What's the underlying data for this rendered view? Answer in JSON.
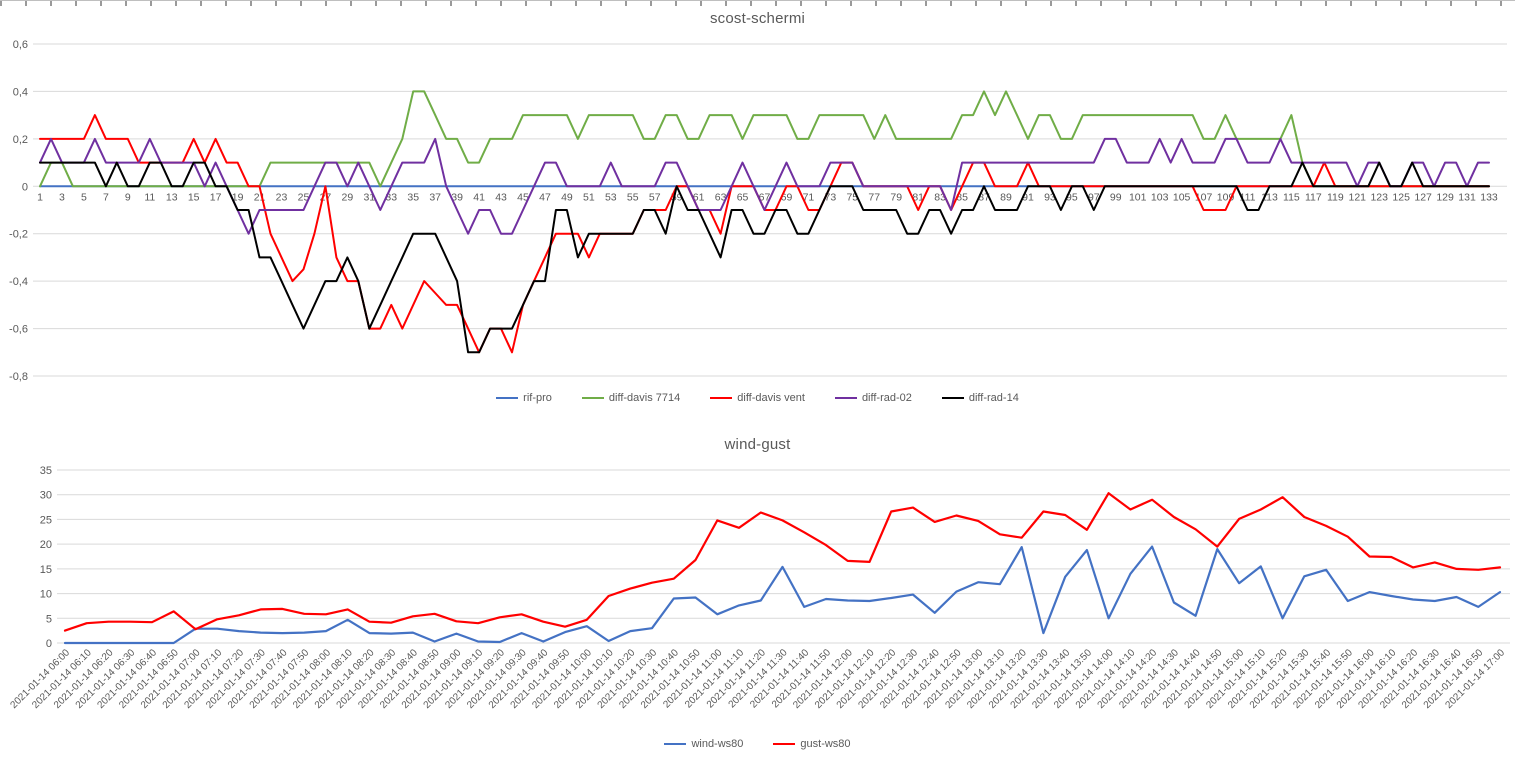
{
  "chart_data": [
    {
      "type": "line",
      "title": "scost-schermi",
      "xlabel": "",
      "ylabel": "",
      "ylim": [
        -0.8,
        0.6
      ],
      "grid": true,
      "legend_position": "bottom",
      "decimal_separator": ",",
      "y_ticks": [
        {
          "v": 0.6,
          "label": "0,6"
        },
        {
          "v": 0.4,
          "label": "0,4"
        },
        {
          "v": 0.2,
          "label": "0,2"
        },
        {
          "v": 0.0,
          "label": "0"
        },
        {
          "v": -0.2,
          "label": "-0,2"
        },
        {
          "v": -0.4,
          "label": "-0,4"
        },
        {
          "v": -0.6,
          "label": "-0,6"
        },
        {
          "v": -0.8,
          "label": "-0,8"
        }
      ],
      "x_labels": [
        "1",
        "3",
        "5",
        "7",
        "9",
        "11",
        "13",
        "15",
        "17",
        "19",
        "21",
        "23",
        "25",
        "27",
        "29",
        "31",
        "33",
        "35",
        "37",
        "39",
        "41",
        "43",
        "45",
        "47",
        "49",
        "51",
        "53",
        "55",
        "57",
        "59",
        "61",
        "63",
        "65",
        "67",
        "69",
        "71",
        "73",
        "75",
        "77",
        "79",
        "81",
        "83",
        "85",
        "87",
        "89",
        "91",
        "93",
        "95",
        "97",
        "99",
        "101",
        "103",
        "105",
        "107",
        "109",
        "111",
        "113",
        "115",
        "117",
        "119",
        "121",
        "123",
        "125",
        "127",
        "129",
        "131",
        "133"
      ],
      "series": [
        {
          "name": "rif-pro",
          "color": "#4472C4",
          "values": [
            0,
            0,
            0,
            0,
            0,
            0,
            0,
            0,
            0,
            0,
            0,
            0,
            0,
            0,
            0,
            0,
            0,
            0,
            0,
            0,
            0,
            0,
            0,
            0,
            0,
            0,
            0,
            0,
            0,
            0,
            0,
            0,
            0,
            0,
            0,
            0,
            0,
            0,
            0,
            0,
            0,
            0,
            0,
            0,
            0,
            0,
            0,
            0,
            0,
            0,
            0,
            0,
            0,
            0,
            0,
            0,
            0,
            0,
            0,
            0,
            0,
            0,
            0,
            0,
            0,
            0,
            0,
            0,
            0,
            0,
            0,
            0,
            0,
            0,
            0,
            0,
            0,
            0,
            0,
            0,
            0,
            0,
            0,
            0,
            0,
            0,
            0,
            0,
            0,
            0,
            0,
            0,
            0,
            0,
            0,
            0,
            0,
            0,
            0,
            0,
            0,
            0,
            0,
            0,
            0,
            0,
            0,
            0,
            0,
            0,
            0,
            0,
            0,
            0,
            0,
            0,
            0,
            0,
            0,
            0,
            0,
            0,
            0,
            0,
            0,
            0,
            0,
            0,
            0,
            0,
            0,
            0,
            0
          ]
        },
        {
          "name": "diff-davis 7714",
          "color": "#70AD47",
          "values": [
            0,
            0.1,
            0.1,
            0,
            0,
            0,
            0,
            0,
            0,
            0,
            0,
            0,
            0,
            0,
            0,
            0,
            0,
            0,
            0,
            0,
            0,
            0.1,
            0.1,
            0.1,
            0.1,
            0.1,
            0.1,
            0.1,
            0.1,
            0.1,
            0.1,
            0,
            0.1,
            0.2,
            0.4,
            0.4,
            0.3,
            0.2,
            0.2,
            0.1,
            0.1,
            0.2,
            0.2,
            0.2,
            0.3,
            0.3,
            0.3,
            0.3,
            0.3,
            0.2,
            0.3,
            0.3,
            0.3,
            0.3,
            0.3,
            0.2,
            0.2,
            0.3,
            0.3,
            0.2,
            0.2,
            0.3,
            0.3,
            0.3,
            0.2,
            0.3,
            0.3,
            0.3,
            0.3,
            0.2,
            0.2,
            0.3,
            0.3,
            0.3,
            0.3,
            0.3,
            0.2,
            0.3,
            0.2,
            0.2,
            0.2,
            0.2,
            0.2,
            0.2,
            0.3,
            0.3,
            0.4,
            0.3,
            0.4,
            0.3,
            0.2,
            0.3,
            0.3,
            0.2,
            0.2,
            0.3,
            0.3,
            0.3,
            0.3,
            0.3,
            0.3,
            0.3,
            0.3,
            0.3,
            0.3,
            0.3,
            0.2,
            0.2,
            0.3,
            0.2,
            0.2,
            0.2,
            0.2,
            0.2,
            0.3,
            0.1,
            0,
            0,
            0,
            0,
            0,
            0,
            0,
            0,
            0,
            0,
            0,
            0,
            0,
            0,
            0,
            0,
            0
          ]
        },
        {
          "name": "diff-davis vent",
          "color": "#FF0000",
          "values": [
            0.2,
            0.2,
            0.2,
            0.2,
            0.2,
            0.3,
            0.2,
            0.2,
            0.2,
            0.1,
            0.1,
            0.1,
            0.1,
            0.1,
            0.2,
            0.1,
            0.2,
            0.1,
            0.1,
            0,
            0,
            -0.2,
            -0.3,
            -0.4,
            -0.35,
            -0.2,
            0,
            -0.3,
            -0.4,
            -0.4,
            -0.6,
            -0.6,
            -0.5,
            -0.6,
            -0.5,
            -0.4,
            -0.45,
            -0.5,
            -0.5,
            -0.6,
            -0.7,
            -0.6,
            -0.6,
            -0.7,
            -0.5,
            -0.4,
            -0.3,
            -0.2,
            -0.2,
            -0.2,
            -0.3,
            -0.2,
            -0.2,
            -0.2,
            -0.2,
            -0.1,
            -0.1,
            -0.1,
            0,
            0,
            -0.1,
            -0.1,
            -0.2,
            0,
            0,
            0,
            -0.1,
            -0.1,
            0,
            0,
            -0.1,
            -0.1,
            0,
            0.1,
            0.1,
            0,
            0,
            0,
            0,
            0,
            -0.1,
            0,
            0,
            -0.1,
            0,
            0.1,
            0.1,
            0,
            0,
            0,
            0.1,
            0,
            0,
            0,
            0,
            0,
            0,
            0,
            0,
            0,
            0,
            0,
            0,
            0,
            0,
            0,
            -0.1,
            -0.1,
            -0.1,
            0,
            0,
            0,
            0,
            0,
            0,
            0,
            0,
            0.1,
            0,
            0,
            0,
            0,
            0,
            0,
            0,
            0,
            0,
            0,
            0,
            0,
            0,
            0,
            0
          ]
        },
        {
          "name": "diff-rad-02",
          "color": "#7030A0",
          "values": [
            0.1,
            0.2,
            0.1,
            0.1,
            0.1,
            0.2,
            0.1,
            0.1,
            0.1,
            0.1,
            0.2,
            0.1,
            0.1,
            0.1,
            0.1,
            0,
            0.1,
            0,
            -0.1,
            -0.2,
            -0.1,
            -0.1,
            -0.1,
            -0.1,
            -0.1,
            0,
            0.1,
            0.1,
            0,
            0.1,
            0,
            -0.1,
            0,
            0.1,
            0.1,
            0.1,
            0.2,
            0,
            -0.1,
            -0.2,
            -0.1,
            -0.1,
            -0.2,
            -0.2,
            -0.1,
            0,
            0.1,
            0.1,
            0,
            0,
            0,
            0,
            0.1,
            0,
            0,
            0,
            0,
            0.1,
            0.1,
            0,
            -0.1,
            -0.1,
            -0.1,
            0,
            0.1,
            0,
            -0.1,
            0,
            0.1,
            0,
            0,
            0,
            0.1,
            0.1,
            0.1,
            0,
            0,
            0,
            0,
            0,
            0,
            0,
            0,
            -0.1,
            0.1,
            0.1,
            0.1,
            0.1,
            0.1,
            0.1,
            0.1,
            0.1,
            0.1,
            0.1,
            0.1,
            0.1,
            0.1,
            0.2,
            0.2,
            0.1,
            0.1,
            0.1,
            0.2,
            0.1,
            0.2,
            0.1,
            0.1,
            0.1,
            0.2,
            0.2,
            0.1,
            0.1,
            0.1,
            0.2,
            0.1,
            0.1,
            0.1,
            0.1,
            0.1,
            0.1,
            0,
            0.1,
            0.1,
            0,
            0,
            0.1,
            0.1,
            0,
            0.1,
            0.1,
            0,
            0.1,
            0.1
          ]
        },
        {
          "name": "diff-rad-14",
          "color": "#000000",
          "values": [
            0.1,
            0.1,
            0.1,
            0.1,
            0.1,
            0.1,
            0,
            0.1,
            0,
            0,
            0.1,
            0.1,
            0,
            0,
            0.1,
            0.1,
            0,
            0,
            -0.1,
            -0.1,
            -0.3,
            -0.3,
            -0.4,
            -0.5,
            -0.6,
            -0.5,
            -0.4,
            -0.4,
            -0.3,
            -0.4,
            -0.6,
            -0.5,
            -0.4,
            -0.3,
            -0.2,
            -0.2,
            -0.2,
            -0.3,
            -0.4,
            -0.7,
            -0.7,
            -0.6,
            -0.6,
            -0.6,
            -0.5,
            -0.4,
            -0.4,
            -0.1,
            -0.1,
            -0.3,
            -0.2,
            -0.2,
            -0.2,
            -0.2,
            -0.2,
            -0.1,
            -0.1,
            -0.2,
            0,
            -0.1,
            -0.1,
            -0.2,
            -0.3,
            -0.1,
            -0.1,
            -0.2,
            -0.2,
            -0.1,
            -0.1,
            -0.2,
            -0.2,
            -0.1,
            0,
            0,
            0,
            -0.1,
            -0.1,
            -0.1,
            -0.1,
            -0.2,
            -0.2,
            -0.1,
            -0.1,
            -0.2,
            -0.1,
            -0.1,
            0,
            -0.1,
            -0.1,
            -0.1,
            0,
            0,
            0,
            -0.1,
            0,
            0,
            -0.1,
            0,
            0,
            0,
            0,
            0,
            0,
            0,
            0,
            0,
            0,
            0,
            0,
            0,
            -0.1,
            -0.1,
            0,
            0,
            0,
            0.1,
            0,
            0,
            0,
            0,
            0,
            0,
            0.1,
            0,
            0,
            0.1,
            0,
            0,
            0,
            0,
            0,
            0,
            0
          ]
        }
      ]
    },
    {
      "type": "line",
      "title": "wind-gust",
      "xlabel": "",
      "ylabel": "",
      "ylim": [
        0,
        35
      ],
      "grid": true,
      "legend_position": "bottom",
      "y_ticks": [
        {
          "v": 35,
          "label": "35"
        },
        {
          "v": 30,
          "label": "30"
        },
        {
          "v": 25,
          "label": "25"
        },
        {
          "v": 20,
          "label": "20"
        },
        {
          "v": 15,
          "label": "15"
        },
        {
          "v": 10,
          "label": "10"
        },
        {
          "v": 5,
          "label": "5"
        },
        {
          "v": 0,
          "label": "0"
        }
      ],
      "x_labels": [
        "2021-01-14 06:00",
        "2021-01-14 06:10",
        "2021-01-14 06:20",
        "2021-01-14 06:30",
        "2021-01-14 06:40",
        "2021-01-14 06:50",
        "2021-01-14 07:00",
        "2021-01-14 07:10",
        "2021-01-14 07:20",
        "2021-01-14 07:30",
        "2021-01-14 07:40",
        "2021-01-14 07:50",
        "2021-01-14 08:00",
        "2021-01-14 08:10",
        "2021-01-14 08:20",
        "2021-01-14 08:30",
        "2021-01-14 08:40",
        "2021-01-14 08:50",
        "2021-01-14 09:00",
        "2021-01-14 09:10",
        "2021-01-14 09:20",
        "2021-01-14 09:30",
        "2021-01-14 09:40",
        "2021-01-14 09:50",
        "2021-01-14 10:00",
        "2021-01-14 10:10",
        "2021-01-14 10:20",
        "2021-01-14 10:30",
        "2021-01-14 10:40",
        "2021-01-14 10:50",
        "2021-01-14 11:00",
        "2021-01-14 11:10",
        "2021-01-14 11:20",
        "2021-01-14 11:30",
        "2021-01-14 11:40",
        "2021-01-14 11:50",
        "2021-01-14 12:00",
        "2021-01-14 12:10",
        "2021-01-14 12:20",
        "2021-01-14 12:30",
        "2021-01-14 12:40",
        "2021-01-14 12:50",
        "2021-01-14 13:00",
        "2021-01-14 13:10",
        "2021-01-14 13:20",
        "2021-01-14 13:30",
        "2021-01-14 13:40",
        "2021-01-14 13:50",
        "2021-01-14 14:00",
        "2021-01-14 14:10",
        "2021-01-14 14:20",
        "2021-01-14 14:30",
        "2021-01-14 14:40",
        "2021-01-14 14:50",
        "2021-01-14 15:00",
        "2021-01-14 15:10",
        "2021-01-14 15:20",
        "2021-01-14 15:30",
        "2021-01-14 15:40",
        "2021-01-14 15:50",
        "2021-01-14 16:00",
        "2021-01-14 16:10",
        "2021-01-14 16:20",
        "2021-01-14 16:30",
        "2021-01-14 16:40",
        "2021-01-14 16:50",
        "2021-01-14 17:00"
      ],
      "series": [
        {
          "name": "wind-ws80",
          "color": "#4472C4",
          "values": [
            0,
            0,
            0,
            0,
            0,
            0,
            2.9,
            2.9,
            2.4,
            2.1,
            2.0,
            2.1,
            2.4,
            4.7,
            2.0,
            1.9,
            2.1,
            0.3,
            1.9,
            0.3,
            0.2,
            2.0,
            0.3,
            2.2,
            3.4,
            0.4,
            2.4,
            3.0,
            9.0,
            9.2,
            5.8,
            7.6,
            8.6,
            15.4,
            7.3,
            8.9,
            8.6,
            8.5,
            9.1,
            9.8,
            6.1,
            10.4,
            12.3,
            11.9,
            19.4,
            2.0,
            13.4,
            18.8,
            5.0,
            14.0,
            19.5,
            8.2,
            5.5,
            19.0,
            12.1,
            15.5,
            5.0,
            13.5,
            14.8,
            8.5,
            10.3,
            9.5,
            8.8,
            8.5,
            9.3,
            7.3,
            10.3
          ]
        },
        {
          "name": "gust-ws80",
          "color": "#FF0000",
          "values": [
            2.5,
            4.0,
            4.3,
            4.3,
            4.2,
            6.4,
            2.8,
            4.8,
            5.6,
            6.8,
            6.9,
            5.9,
            5.8,
            6.8,
            4.3,
            4.1,
            5.4,
            5.9,
            4.4,
            4.0,
            5.2,
            5.8,
            4.3,
            3.3,
            4.7,
            9.5,
            11.0,
            12.2,
            13.0,
            16.8,
            24.8,
            23.3,
            26.4,
            24.8,
            22.4,
            19.8,
            16.6,
            16.4,
            26.6,
            27.4,
            24.5,
            25.8,
            24.7,
            22.0,
            21.3,
            26.6,
            25.9,
            22.9,
            30.3,
            27.0,
            29.0,
            25.5,
            23.0,
            19.5,
            25.1,
            27.0,
            29.5,
            25.5,
            23.7,
            21.5,
            17.5,
            17.4,
            15.3,
            16.3,
            15.0,
            14.8,
            15.3
          ]
        }
      ]
    }
  ]
}
